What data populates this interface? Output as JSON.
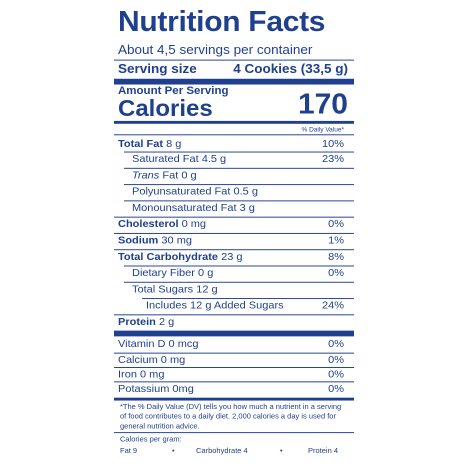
{
  "title": "Nutrition Facts",
  "servings_per_container": "About 4,5 servings per container",
  "serving_size_label": "Serving size",
  "serving_size_value": "4 Cookies (33,5 g)",
  "amount_per_serving": "Amount Per Serving",
  "calories_label": "Calories",
  "calories_value": "170",
  "daily_value_header": "% Daily Value*",
  "nutrients": {
    "total_fat": {
      "label": "Total Fat",
      "amount": "8 g",
      "dv": "10%"
    },
    "saturated_fat": {
      "label": "Saturated Fat 4.5 g",
      "dv": "23%"
    },
    "trans_fat": {
      "italic": "Trans",
      "label": " Fat 0 g"
    },
    "polyunsaturated_fat": {
      "label": "Polyunsaturated Fat 0.5 g"
    },
    "monounsaturated_fat": {
      "label": "Monounsaturated Fat 3 g"
    },
    "cholesterol": {
      "label": "Cholesterol",
      "amount": "0 mg",
      "dv": "0%"
    },
    "sodium": {
      "label": "Sodium",
      "amount": "30 mg",
      "dv": "1%"
    },
    "total_carbohydrate": {
      "label": "Total Carbohydrate",
      "amount": "23 g",
      "dv": "8%"
    },
    "dietary_fiber": {
      "label": "Dietary Fiber 0 g",
      "dv": "0%"
    },
    "total_sugars": {
      "label": "Total Sugars 12 g"
    },
    "added_sugars": {
      "label": "Includes 12 g Added Sugars",
      "dv": "24%"
    },
    "protein": {
      "label": "Protein",
      "amount": "2 g"
    }
  },
  "vitamins": [
    {
      "label": "Vitamin D 0 mcg",
      "dv": "0%"
    },
    {
      "label": "Calcium 0 mg",
      "dv": "0%"
    },
    {
      "label": "Iron 0 mg",
      "dv": "0%"
    },
    {
      "label": "Potassium 0mg",
      "dv": "0%"
    }
  ],
  "footnote": "*The % Daily Value (DV) tells you how much a nutrient in a serving of food contributes to a daily diet. 2,000 calories a day is used for general nutrition advice.",
  "calories_per_gram": {
    "label": "Calories per gram:",
    "fat": "Fat 9",
    "carbohydrate": "Carbohydrate 4",
    "protein": "Protein 4",
    "separator": "•"
  },
  "colors": {
    "ink": "#1f3f8f",
    "background": "#ffffff"
  }
}
